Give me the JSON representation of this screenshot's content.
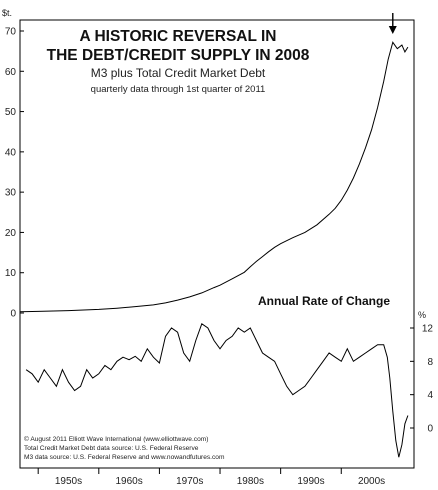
{
  "chart_data": [
    {
      "type": "line",
      "title_lines": [
        "A HISTORIC REVERSAL IN",
        "THE DEBT/CREDIT SUPPLY IN 2008"
      ],
      "subtitle": "M3 plus Total Credit Market Debt",
      "subtitle2": "quarterly data through 1st quarter of 2011",
      "y_unit_label": "$t.",
      "ylim": [
        0,
        70
      ],
      "yticks": [
        0,
        10,
        20,
        30,
        40,
        50,
        60,
        70
      ],
      "xlim": [
        1947,
        2012
      ],
      "series": [
        {
          "x": [
            1947,
            1950,
            1955,
            1960,
            1963,
            1966,
            1969,
            1971,
            1973,
            1975,
            1977,
            1979,
            1980,
            1982,
            1984,
            1985,
            1986,
            1987,
            1988,
            1989,
            1990,
            1992,
            1994,
            1996,
            1998,
            1999,
            2000,
            2001,
            2002,
            2003,
            2004,
            2005,
            2006,
            2007,
            2007.75,
            2008.5,
            2009.25,
            2010,
            2010.5,
            2011
          ],
          "y": [
            0.3,
            0.4,
            0.6,
            0.9,
            1.2,
            1.6,
            2.0,
            2.5,
            3.2,
            4.0,
            5.0,
            6.3,
            6.9,
            8.5,
            10.1,
            11.5,
            12.8,
            14.0,
            15.2,
            16.3,
            17.2,
            18.7,
            20.0,
            21.9,
            24.5,
            26.0,
            28.0,
            30.5,
            33.5,
            37.0,
            41.0,
            45.5,
            51.0,
            57.5,
            63.0,
            67.2,
            65.6,
            66.5,
            64.8,
            66.0
          ]
        }
      ],
      "annotations": [
        {
          "type": "arrow",
          "x": 2008.5
        }
      ]
    },
    {
      "type": "line",
      "title": "Annual Rate of Change",
      "y_unit_label": "%",
      "ylim": [
        -4,
        12
      ],
      "yticks": [
        0,
        4,
        8,
        12
      ],
      "xlim": [
        1947,
        2012
      ],
      "series": [
        {
          "x": [
            1948,
            1949,
            1950,
            1951,
            1952,
            1953,
            1954,
            1955,
            1956,
            1957,
            1958,
            1959,
            1960,
            1961,
            1962,
            1963,
            1964,
            1965,
            1966,
            1967,
            1968,
            1969,
            1970,
            1971,
            1972,
            1973,
            1974,
            1975,
            1976,
            1977,
            1978,
            1979,
            1980,
            1981,
            1982,
            1983,
            1984,
            1985,
            1986,
            1987,
            1988,
            1989,
            1990,
            1991,
            1992,
            1993,
            1994,
            1995,
            1996,
            1997,
            1998,
            1999,
            2000,
            2001,
            2002,
            2003,
            2004,
            2005,
            2006,
            2007,
            2007.6,
            2008,
            2008.5,
            2009,
            2009.5,
            2010,
            2010.5,
            2011
          ],
          "y": [
            7.0,
            6.5,
            5.5,
            7.0,
            6.0,
            5.0,
            7.0,
            5.5,
            4.5,
            5.0,
            7.0,
            6.0,
            6.5,
            7.5,
            7.0,
            8.0,
            8.5,
            8.2,
            8.6,
            8.0,
            9.5,
            8.5,
            7.8,
            11.0,
            12.0,
            11.5,
            9.0,
            8.0,
            10.5,
            12.5,
            12.0,
            10.5,
            9.5,
            10.5,
            11.0,
            12.0,
            11.5,
            12.0,
            10.5,
            9.0,
            8.5,
            8.0,
            6.5,
            5.0,
            4.0,
            4.5,
            5.0,
            6.0,
            7.0,
            8.0,
            9.0,
            8.5,
            8.0,
            9.5,
            8.0,
            8.5,
            9.0,
            9.5,
            10.0,
            10.0,
            8.5,
            6.0,
            2.0,
            -1.5,
            -3.5,
            -2.0,
            0.5,
            1.5
          ]
        }
      ]
    }
  ],
  "x_axis": {
    "ticks": [
      "1950s",
      "1960s",
      "1970s",
      "1980s",
      "1990s",
      "2000s"
    ]
  },
  "footnotes": [
    "© August 2011 Elliott Wave International (www.elliottwave.com)",
    "Total Credit Market Debt data source: U.S. Federal Reserve",
    "M3 data source: U.S. Federal Reserve and www.nowandfutures.com"
  ]
}
